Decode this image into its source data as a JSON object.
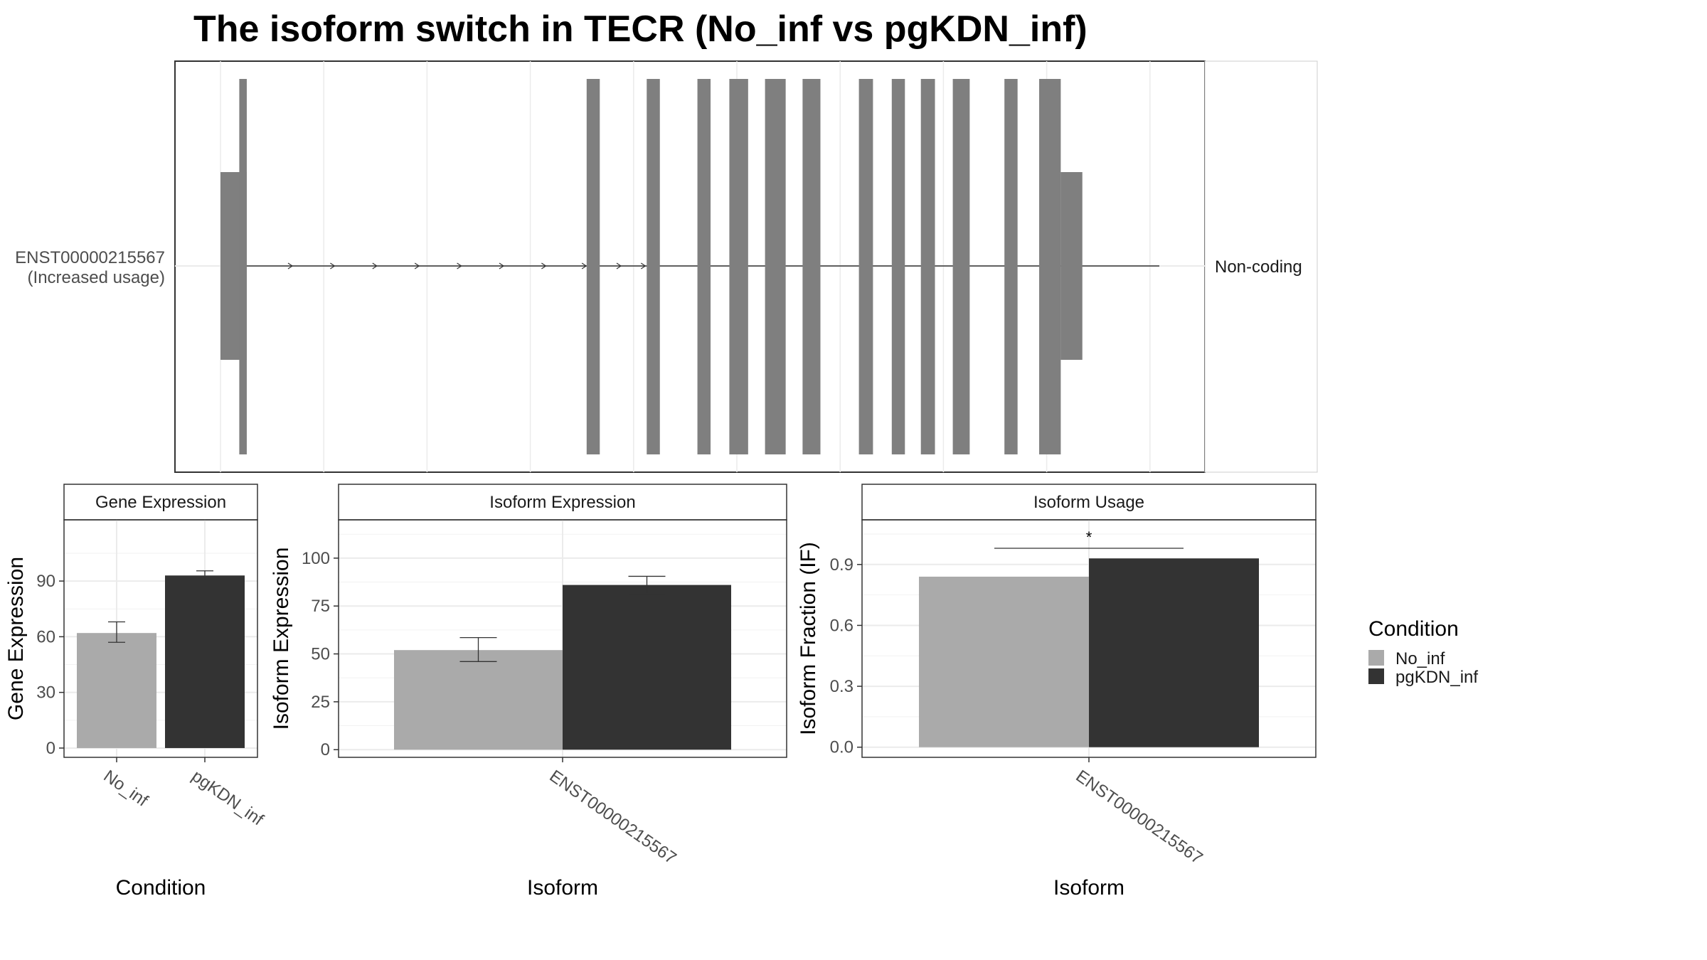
{
  "title": "The isoform switch in TECR (No_inf vs pgKDN_inf)",
  "colors": {
    "no_inf": "#aaaaaa",
    "pgkdn_inf": "#333333",
    "exon": "#7f7f7f",
    "grid": "#ebebeb",
    "axis_text": "#4d4d4d"
  },
  "chart_data": [
    {
      "type": "gene-structure",
      "panel": "isoform-structure",
      "transcript": "ENST00000215567",
      "transcript_note": "(Increased usage)",
      "coding_label": "Non-coding",
      "x_range": [
        0,
        1000
      ],
      "utr_segments": [
        [
          0,
          28
        ],
        [
          895,
          918
        ]
      ],
      "exons": [
        [
          20,
          28
        ],
        [
          390,
          404
        ],
        [
          454,
          468
        ],
        [
          508,
          522
        ],
        [
          542,
          562
        ],
        [
          580,
          602
        ],
        [
          620,
          639
        ],
        [
          680,
          695
        ],
        [
          715,
          729
        ],
        [
          746,
          761
        ],
        [
          780,
          798
        ],
        [
          835,
          849
        ],
        [
          872,
          895
        ]
      ],
      "intron_arrow_positions": [
        75,
        120,
        165,
        210,
        255,
        300,
        345,
        388,
        425,
        451
      ]
    },
    {
      "type": "bar",
      "panel": "gene-expression",
      "strip_title": "Gene Expression",
      "xlabel": "Condition",
      "ylabel": "Gene Expression",
      "ylim": [
        -5,
        123
      ],
      "yticks": [
        0,
        30,
        60,
        90
      ],
      "categories": [
        "No_inf",
        "pgKDN_inf"
      ],
      "values": [
        62,
        93
      ],
      "errors": [
        [
          57,
          68
        ],
        [
          90.5,
          95.5
        ]
      ]
    },
    {
      "type": "bar",
      "panel": "isoform-expression",
      "strip_title": "Isoform Expression",
      "xlabel": "Isoform",
      "ylabel": "Isoform Expression",
      "ylim": [
        -4,
        120
      ],
      "yticks": [
        0,
        25,
        50,
        75,
        100
      ],
      "categories": [
        "ENST00000215567"
      ],
      "series": [
        {
          "name": "No_inf",
          "values": [
            52
          ],
          "errors": [
            [
              46,
              58.5
            ]
          ]
        },
        {
          "name": "pgKDN_inf",
          "values": [
            86
          ],
          "errors": [
            [
              81.5,
              90.5
            ]
          ]
        }
      ]
    },
    {
      "type": "bar",
      "panel": "isoform-usage",
      "strip_title": "Isoform Usage",
      "xlabel": "Isoform",
      "ylabel": "Isoform Fraction (IF)",
      "ylim": [
        -0.05,
        1.12
      ],
      "yticks": [
        "0.0",
        "0.3",
        "0.6",
        "0.9"
      ],
      "categories": [
        "ENST00000215567"
      ],
      "series": [
        {
          "name": "No_inf",
          "values": [
            0.84
          ]
        },
        {
          "name": "pgKDN_inf",
          "values": [
            0.93
          ]
        }
      ],
      "significance": {
        "label": "*",
        "y": 0.98
      }
    }
  ],
  "legend": {
    "title": "Condition",
    "items": [
      {
        "label": "No_inf",
        "color": "#aaaaaa"
      },
      {
        "label": "pgKDN_inf",
        "color": "#333333"
      }
    ]
  }
}
